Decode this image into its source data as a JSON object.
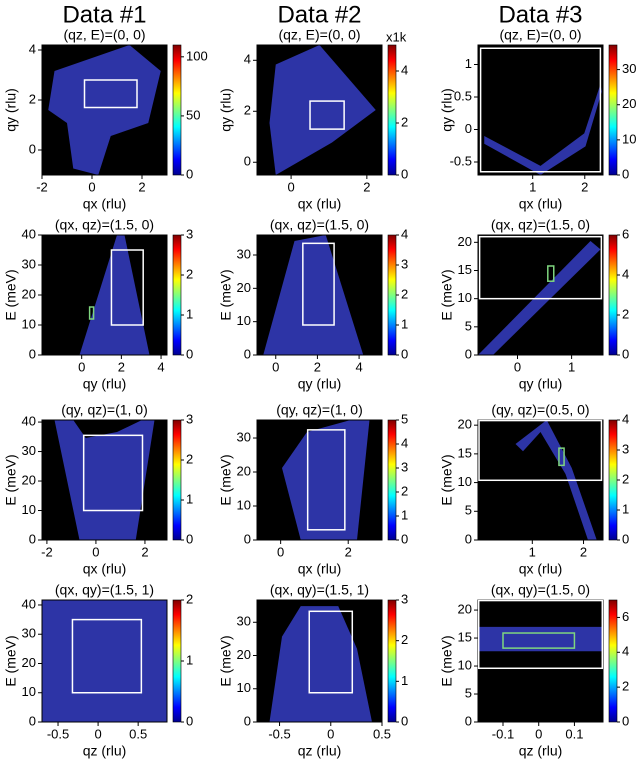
{
  "column_titles": [
    "Data #1",
    "Data #2",
    "Data #3"
  ],
  "chart_data": [
    {
      "type": "heatmap",
      "subtitle": "(qz, E)=(0, 0)",
      "xlabel": "qx (rlu)",
      "ylabel": "qy (rlu)",
      "xlim": [
        -2,
        3
      ],
      "xticks": [
        -2,
        0,
        2
      ],
      "ylim": [
        -1,
        4.2
      ],
      "yticks": [
        0,
        2,
        4
      ],
      "clim": [
        0,
        110
      ],
      "cticks": [
        0,
        50,
        100
      ],
      "boxes": [
        {
          "x": [
            -0.3,
            1.8
          ],
          "y": [
            1.7,
            2.8
          ],
          "color": "#ffffff"
        }
      ]
    },
    {
      "type": "heatmap",
      "subtitle": "(qz, E)=(0, 0)",
      "xlabel": "qx (rlu)",
      "ylabel": "qy (rlu)",
      "xlim": [
        -0.9,
        2.4
      ],
      "xticks": [
        0,
        2
      ],
      "ylim": [
        -0.5,
        4.6
      ],
      "yticks": [
        0,
        2,
        4
      ],
      "clim": [
        0,
        5
      ],
      "cticks": [
        0,
        2,
        4
      ],
      "clabel": "x1k",
      "boxes": [
        {
          "x": [
            0.5,
            1.4
          ],
          "y": [
            1.3,
            2.4
          ],
          "color": "#ffffff"
        }
      ]
    },
    {
      "type": "heatmap",
      "subtitle": "(qz, E)=(0, 0)",
      "xlabel": "qx (rlu)",
      "ylabel": "qy (rlu)",
      "xlim": [
        -0.05,
        2.35
      ],
      "xticks": [
        1,
        2
      ],
      "ylim": [
        -0.7,
        1.3
      ],
      "yticks": [
        -0.5,
        0,
        0.5,
        1
      ],
      "clim": [
        0,
        37
      ],
      "cticks": [
        0,
        10,
        20,
        30
      ],
      "boxes": [
        {
          "x": [
            0,
            2.3
          ],
          "y": [
            -0.65,
            1.25
          ],
          "color": "#ffffff"
        }
      ]
    },
    {
      "type": "heatmap",
      "subtitle": "(qx, qz)=(1.5, 0)",
      "xlabel": "qy (rlu)",
      "ylabel": "E (meV)",
      "xlim": [
        -2,
        4.3
      ],
      "xticks": [
        0,
        2,
        4
      ],
      "ylim": [
        0,
        40
      ],
      "yticks": [
        0,
        10,
        20,
        30,
        40
      ],
      "clim": [
        0,
        3
      ],
      "cticks": [
        0,
        1,
        2,
        3
      ],
      "boxes": [
        {
          "x": [
            1.5,
            3.1
          ],
          "y": [
            10,
            35
          ],
          "color": "#ffffff"
        },
        {
          "x": [
            0.4,
            0.6
          ],
          "y": [
            12,
            16
          ],
          "color": "#7fd67f"
        }
      ]
    },
    {
      "type": "heatmap",
      "subtitle": "(qx, qz)=(1.5, 0)",
      "xlabel": "qy (rlu)",
      "ylabel": "E (meV)",
      "xlim": [
        -0.9,
        5.1
      ],
      "xticks": [
        0,
        2,
        4
      ],
      "ylim": [
        0,
        36
      ],
      "yticks": [
        0,
        10,
        20,
        30
      ],
      "clim": [
        0,
        4
      ],
      "cticks": [
        0,
        1,
        2,
        3,
        4
      ],
      "boxes": [
        {
          "x": [
            1.3,
            2.8
          ],
          "y": [
            9,
            33.5
          ],
          "color": "#ffffff"
        }
      ]
    },
    {
      "type": "heatmap",
      "subtitle": "(qx, qz)=(1.5, 0)",
      "xlabel": "qy (rlu)",
      "ylabel": "E (meV)",
      "xlim": [
        -0.73,
        1.58
      ],
      "xticks": [
        0,
        1
      ],
      "ylim": [
        0,
        21.3
      ],
      "yticks": [
        0,
        5,
        10,
        15,
        20
      ],
      "clim": [
        0,
        6
      ],
      "cticks": [
        0,
        2,
        4,
        6
      ],
      "boxes": [
        {
          "x": [
            -0.7,
            1.55
          ],
          "y": [
            10,
            21
          ],
          "color": "#ffffff"
        },
        {
          "x": [
            0.56,
            0.67
          ],
          "y": [
            13.1,
            15.8
          ],
          "color": "#7fd67f"
        }
      ]
    },
    {
      "type": "heatmap",
      "subtitle": "(qy, qz)=(1, 0)",
      "xlabel": "qx (rlu)",
      "ylabel": "E (meV)",
      "xlim": [
        -2.2,
        2.9
      ],
      "xticks": [
        -2,
        0,
        2
      ],
      "ylim": [
        0,
        40.7
      ],
      "yticks": [
        0,
        10,
        20,
        30,
        40
      ],
      "clim": [
        0,
        3
      ],
      "cticks": [
        0,
        1,
        2,
        3
      ],
      "boxes": [
        {
          "x": [
            -0.5,
            1.9
          ],
          "y": [
            10,
            35.5
          ],
          "color": "#ffffff"
        }
      ]
    },
    {
      "type": "heatmap",
      "subtitle": "(qy, qz)=(1, 0)",
      "xlabel": "qx (rlu)",
      "ylabel": "E (meV)",
      "xlim": [
        -0.7,
        3
      ],
      "xticks": [
        0,
        2
      ],
      "ylim": [
        0,
        35.3
      ],
      "yticks": [
        0,
        10,
        20,
        30
      ],
      "clim": [
        0,
        5
      ],
      "cticks": [
        0,
        1,
        2,
        3,
        4,
        5
      ],
      "boxes": [
        {
          "x": [
            0.8,
            1.9
          ],
          "y": [
            3,
            32.4
          ],
          "color": "#ffffff"
        }
      ]
    },
    {
      "type": "heatmap",
      "subtitle": "(qy, qz)=(0.5, 0)",
      "xlabel": "qx (rlu)",
      "ylabel": "E (meV)",
      "xlim": [
        -0.06,
        2.38
      ],
      "xticks": [
        1,
        2
      ],
      "ylim": [
        0,
        20.9
      ],
      "yticks": [
        0,
        5,
        10,
        15,
        20
      ],
      "clim": [
        0,
        4
      ],
      "cticks": [
        0,
        1,
        2,
        3,
        4
      ],
      "boxes": [
        {
          "x": [
            -0.04,
            2.35
          ],
          "y": [
            10.4,
            20.8
          ],
          "color": "#ffffff"
        },
        {
          "x": [
            1.52,
            1.62
          ],
          "y": [
            13,
            16
          ],
          "color": "#7fd67f"
        }
      ]
    },
    {
      "type": "heatmap",
      "subtitle": "(qx, qy)=(1.5, 1)",
      "xlabel": "qz (rlu)",
      "ylabel": "E (meV)",
      "xlim": [
        -0.7,
        0.86
      ],
      "xticks": [
        -0.5,
        0,
        0.5
      ],
      "ylim": [
        0,
        41.7
      ],
      "yticks": [
        0,
        10,
        20,
        30,
        40
      ],
      "clim": [
        0,
        2
      ],
      "cticks": [
        0,
        1,
        2
      ],
      "boxes": [
        {
          "x": [
            -0.32,
            0.54
          ],
          "y": [
            10,
            35
          ],
          "color": "#ffffff"
        }
      ]
    },
    {
      "type": "heatmap",
      "subtitle": "(qx, qy)=(1.5, 1)",
      "xlabel": "qz (rlu)",
      "ylabel": "E (meV)",
      "xlim": [
        -0.72,
        0.5
      ],
      "xticks": [
        -0.5,
        0,
        0.5
      ],
      "ylim": [
        0,
        36.7
      ],
      "yticks": [
        0,
        10,
        20,
        30
      ],
      "clim": [
        0,
        3
      ],
      "cticks": [
        0,
        1,
        2,
        3
      ],
      "boxes": [
        {
          "x": [
            -0.21,
            0.21
          ],
          "y": [
            8.8,
            33.3
          ],
          "color": "#ffffff"
        }
      ]
    },
    {
      "type": "heatmap",
      "subtitle": "(qx, qy)=(1.5, 0)",
      "xlabel": "qz (rlu)",
      "ylabel": "E (meV)",
      "xlim": [
        -0.17,
        0.18
      ],
      "xticks": [
        -0.1,
        0,
        0.1
      ],
      "ylim": [
        0,
        21.8
      ],
      "yticks": [
        0,
        5,
        10,
        15,
        20
      ],
      "clim": [
        0,
        7
      ],
      "cticks": [
        0,
        2,
        4,
        6
      ],
      "boxes": [
        {
          "x": [
            -0.168,
            0.178
          ],
          "y": [
            9.6,
            21.7
          ],
          "color": "#ffffff"
        },
        {
          "x": [
            -0.1,
            0.1
          ],
          "y": [
            13.2,
            15.9
          ],
          "color": "#7fd67f"
        }
      ]
    }
  ]
}
